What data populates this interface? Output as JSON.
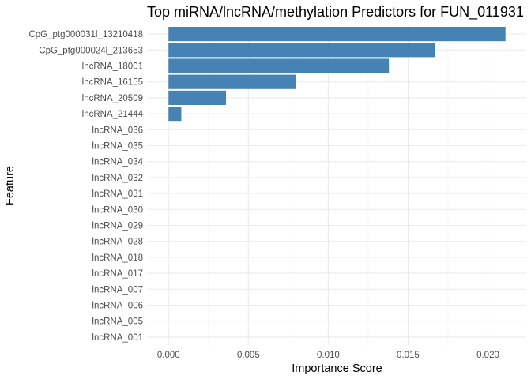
{
  "chart_data": {
    "type": "bar",
    "orientation": "horizontal",
    "title": "Top miRNA/lncRNA/methylation Predictors for FUN_011931",
    "xlabel": "Importance Score",
    "ylabel": "Feature",
    "xlim": [
      -0.0013,
      0.0224
    ],
    "x_ticks": [
      0.0,
      0.005,
      0.01,
      0.015,
      0.02
    ],
    "x_tick_labels": [
      "0.000",
      "0.005",
      "0.010",
      "0.015",
      "0.020"
    ],
    "bar_color": "#4682b4",
    "grid": true,
    "categories": [
      "CpG_ptg000031l_13210418",
      "CpG_ptg000024l_213653",
      "lncRNA_18001",
      "lncRNA_16155",
      "lncRNA_20509",
      "lncRNA_21444",
      "lncRNA_036",
      "lncRNA_035",
      "lncRNA_034",
      "lncRNA_032",
      "lncRNA_031",
      "lncRNA_030",
      "lncRNA_029",
      "lncRNA_028",
      "lncRNA_018",
      "lncRNA_017",
      "lncRNA_007",
      "lncRNA_006",
      "lncRNA_005",
      "lncRNA_001"
    ],
    "values": [
      0.0211,
      0.0167,
      0.0138,
      0.008,
      0.0036,
      0.0008,
      0,
      0,
      0,
      0,
      0,
      0,
      0,
      0,
      0,
      0,
      0,
      0,
      0,
      0
    ]
  }
}
